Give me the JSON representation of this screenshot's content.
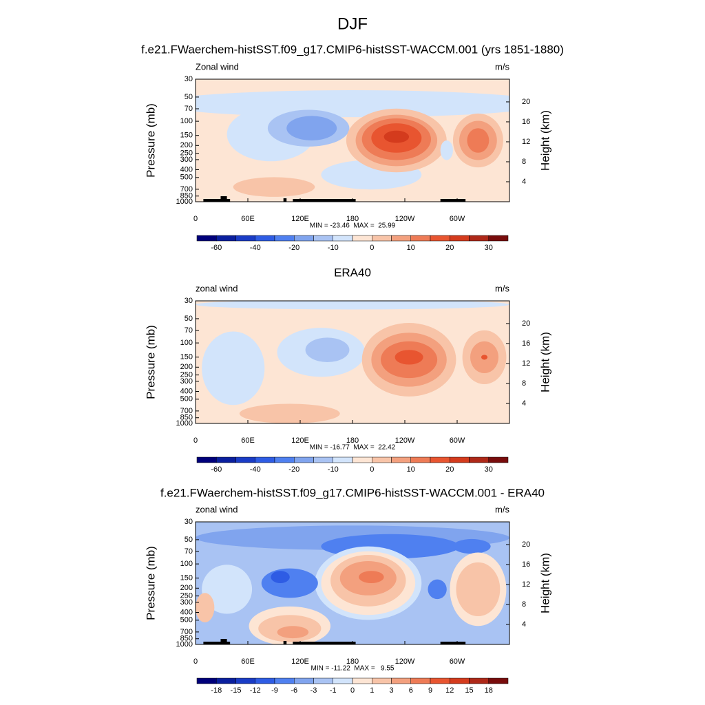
{
  "title": "DJF",
  "chart_data": [
    {
      "type": "contour",
      "title": "f.e21.FWaerchem-histSST.f09_g17.CMIP6-histSST-WACCM.001 (yrs 1851-1880)",
      "left_label": "Zonal wind",
      "right_label": "m/s",
      "ylabel": "Pressure (mb)",
      "y2label": "Height (km)",
      "log": true,
      "ylim": [
        1000,
        30
      ],
      "yticks": [
        30,
        50,
        70,
        100,
        150,
        200,
        250,
        300,
        400,
        500,
        700,
        850,
        1000
      ],
      "y2ticks": [
        4,
        8,
        12,
        16,
        20
      ],
      "xlim": [
        0,
        360
      ],
      "xticks": [
        0,
        {
          "value": 60,
          "label": "60E"
        },
        {
          "value": 120,
          "label": "120E"
        },
        180,
        {
          "value": 240,
          "label": "120W"
        },
        {
          "value": 300,
          "label": "60W"
        }
      ],
      "stats": "MIN = -23.46  MAX =  25.99",
      "colorbar": {
        "colors": [
          "#00007a",
          "#0a1f9e",
          "#1a3cc6",
          "#2e5ce4",
          "#4f80f0",
          "#80a4ee",
          "#a9c3f3",
          "#d2e4fb",
          "#fde5d4",
          "#f8c4a8",
          "#f3a07e",
          "#ee7b56",
          "#e85530",
          "#d43b1d",
          "#ae2818",
          "#780c0c"
        ],
        "labels": [
          -60,
          -40,
          -20,
          -10,
          0,
          10,
          20,
          30
        ]
      }
    },
    {
      "type": "contour",
      "title": "ERA40",
      "left_label": "zonal wind",
      "right_label": "m/s",
      "ylabel": "Pressure (mb)",
      "y2label": "Height (km)",
      "log": true,
      "ylim": [
        1000,
        30
      ],
      "yticks": [
        30,
        50,
        70,
        100,
        150,
        200,
        250,
        300,
        400,
        500,
        700,
        850,
        1000
      ],
      "y2ticks": [
        4,
        8,
        12,
        16,
        20
      ],
      "xlim": [
        0,
        360
      ],
      "xticks": [
        0,
        {
          "value": 60,
          "label": "60E"
        },
        {
          "value": 120,
          "label": "120E"
        },
        180,
        {
          "value": 240,
          "label": "120W"
        },
        {
          "value": 300,
          "label": "60W"
        }
      ],
      "stats": "MIN = -16.77  MAX =  22.42",
      "colorbar": {
        "colors": [
          "#00007a",
          "#0a1f9e",
          "#1a3cc6",
          "#2e5ce4",
          "#4f80f0",
          "#80a4ee",
          "#a9c3f3",
          "#d2e4fb",
          "#fde5d4",
          "#f8c4a8",
          "#f3a07e",
          "#ee7b56",
          "#e85530",
          "#d43b1d",
          "#ae2818",
          "#780c0c"
        ],
        "labels": [
          -60,
          -40,
          -20,
          -10,
          0,
          10,
          20,
          30
        ]
      }
    },
    {
      "type": "contour",
      "title": "f.e21.FWaerchem-histSST.f09_g17.CMIP6-histSST-WACCM.001 - ERA40",
      "left_label": "zonal wind",
      "right_label": "m/s",
      "ylabel": "Pressure (mb)",
      "y2label": "Height (km)",
      "log": true,
      "ylim": [
        1000,
        30
      ],
      "yticks": [
        30,
        50,
        70,
        100,
        150,
        200,
        250,
        300,
        400,
        500,
        700,
        850,
        1000
      ],
      "y2ticks": [
        4,
        8,
        12,
        16,
        20
      ],
      "xlim": [
        0,
        360
      ],
      "xticks": [
        0,
        {
          "value": 60,
          "label": "60E"
        },
        {
          "value": 120,
          "label": "120E"
        },
        180,
        {
          "value": 240,
          "label": "120W"
        },
        {
          "value": 300,
          "label": "60W"
        }
      ],
      "stats": "MIN = -11.22  MAX =   9.55",
      "colorbar": {
        "colors": [
          "#00007a",
          "#0a1f9e",
          "#1a3cc6",
          "#2e5ce4",
          "#4f80f0",
          "#80a4ee",
          "#a9c3f3",
          "#d2e4fb",
          "#fde5d4",
          "#f8c4a8",
          "#f3a07e",
          "#ee7b56",
          "#e85530",
          "#d43b1d",
          "#ae2818",
          "#780c0c"
        ],
        "labels": [
          -18,
          -15,
          -12,
          -9,
          -6,
          -3,
          -1,
          0,
          1,
          3,
          6,
          9,
          12,
          15,
          18
        ]
      }
    }
  ]
}
